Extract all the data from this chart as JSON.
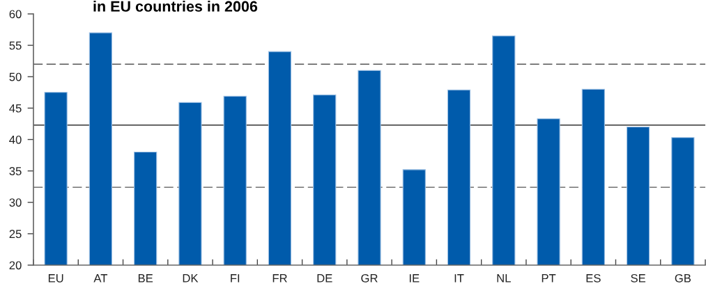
{
  "chart_data": {
    "type": "bar",
    "title": "in EU countries in 2006",
    "categories": [
      "EU",
      "AT",
      "BE",
      "DK",
      "FI",
      "FR",
      "DE",
      "GR",
      "IE",
      "IT",
      "NL",
      "PT",
      "ES",
      "SE",
      "GB"
    ],
    "values": [
      47.5,
      57.0,
      38.0,
      45.9,
      46.9,
      54.0,
      47.1,
      51.0,
      35.2,
      47.9,
      56.5,
      43.3,
      48.0,
      42.0,
      40.3
    ],
    "color": "#005bab",
    "ylim": [
      20,
      60
    ],
    "yticks": [
      20,
      25,
      30,
      35,
      40,
      45,
      50,
      55,
      60
    ],
    "ref_lines": [
      {
        "axis": "y",
        "value": 52.0,
        "line_style": "dashed",
        "color": "#555555"
      },
      {
        "axis": "y",
        "value": 42.3,
        "line_style": "solid",
        "color": "#333333"
      },
      {
        "axis": "y",
        "value": 32.4,
        "line_style": "dashed",
        "color": "#555555"
      }
    ]
  }
}
